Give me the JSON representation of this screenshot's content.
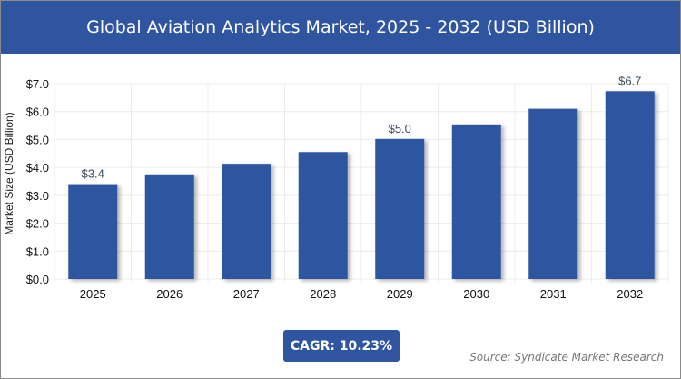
{
  "header": {
    "title": "Global Aviation Analytics Market, 2025 - 2032 (USD Billion)"
  },
  "chart_data": {
    "type": "bar",
    "title": "Global Aviation Analytics Market, 2025 - 2032 (USD Billion)",
    "categories": [
      "2025",
      "2026",
      "2027",
      "2028",
      "2029",
      "2030",
      "2031",
      "2032"
    ],
    "values": [
      3.4,
      3.75,
      4.13,
      4.55,
      5.02,
      5.54,
      6.1,
      6.73
    ],
    "data_labels": {
      "2025": "$3.4",
      "2029": "$5.0",
      "2032": "$6.7"
    },
    "ylabel": "Market Size (USD Billion)",
    "xlabel": "",
    "ylim": [
      0,
      7
    ],
    "yticks": [
      "$0.0",
      "$1.0",
      "$2.0",
      "$3.0",
      "$4.0",
      "$5.0",
      "$6.0",
      "$7.0"
    ],
    "grid": true,
    "bar_color": "#2f55a0"
  },
  "footer": {
    "cagr": "CAGR: 10.23%",
    "source": "Source: Syndicate Market Research"
  }
}
